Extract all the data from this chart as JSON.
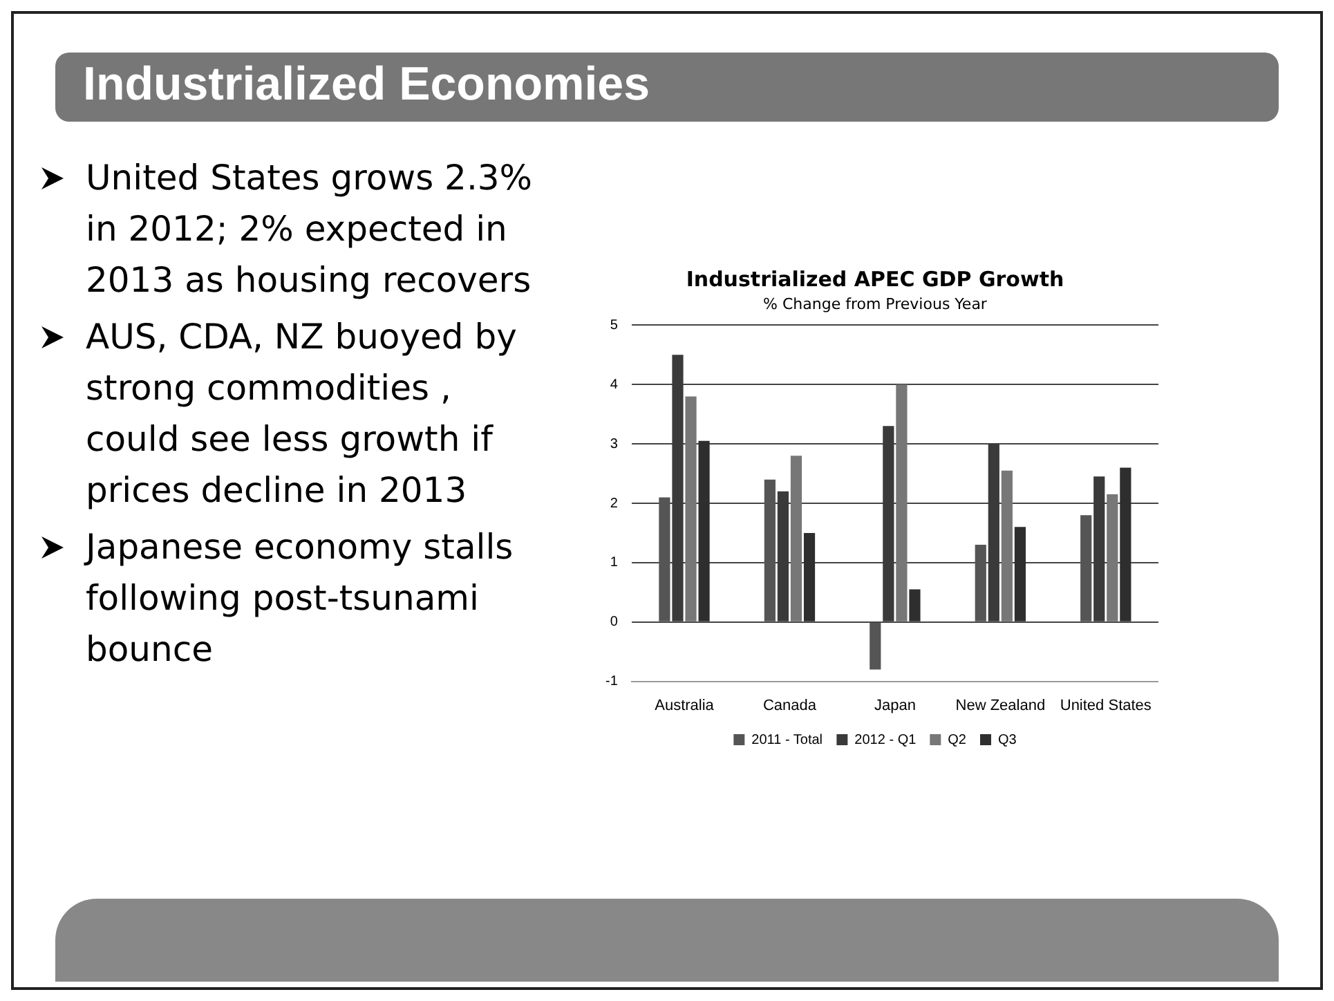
{
  "chart_data": {
    "type": "bar",
    "title": "Industrialized APEC GDP Growth",
    "subtitle": "% Change from Previous Year",
    "categories": [
      "Australia",
      "Canada",
      "Japan",
      "New Zealand",
      "United States"
    ],
    "series": [
      {
        "name": "2011 - Total",
        "color": "#555555",
        "values": [
          2.1,
          2.4,
          -0.8,
          1.3,
          1.8
        ]
      },
      {
        "name": "2012 - Q1",
        "color": "#3a3a3a",
        "values": [
          4.5,
          2.2,
          3.3,
          3.0,
          2.45
        ]
      },
      {
        "name": "Q2",
        "color": "#777777",
        "values": [
          3.8,
          2.8,
          4.0,
          2.55,
          2.15
        ]
      },
      {
        "name": "Q3",
        "color": "#2e2e2e",
        "values": [
          3.05,
          1.5,
          0.55,
          1.6,
          2.6
        ]
      }
    ],
    "ylim": [
      -1,
      5
    ],
    "yticks": [
      -1,
      0,
      1,
      2,
      3,
      4,
      5
    ],
    "grid": "y",
    "legend": "bottom",
    "annotations": [
      "Industrialized Economies",
      "United States grows 2.3% in 2012; 2% expected in 2013 as housing recovers",
      "AUS, CDA, NZ buoyed by strong commodities , could see less growth if prices decline in 2013",
      "Japanese economy stalls following post-tsunami bounce"
    ]
  }
}
